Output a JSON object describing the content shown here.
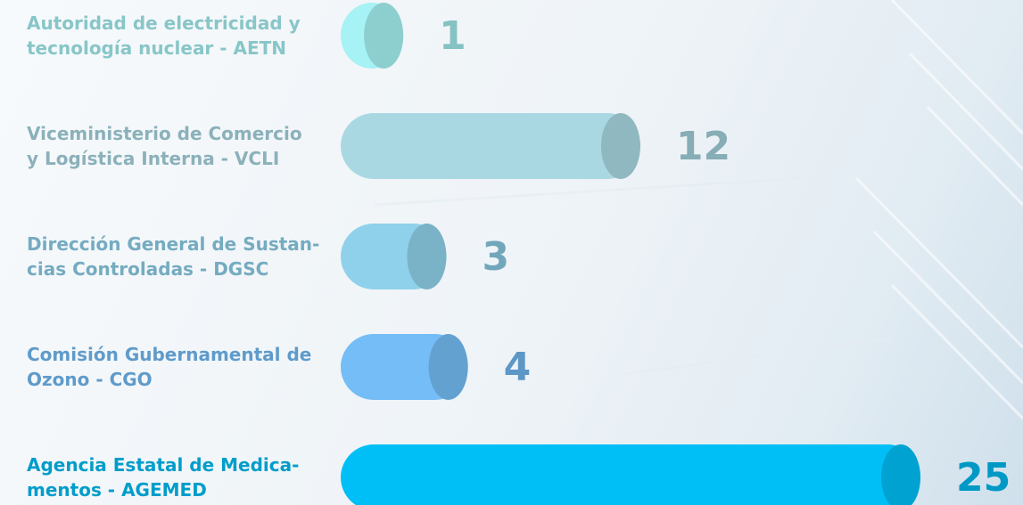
{
  "chart_data": {
    "type": "bar",
    "orientation": "horizontal",
    "categories": [
      "Autoridad de electricidad y\ntecnología nuclear - AETN",
      "Viceministerio de Comercio\ny Logística Interna - VCLI",
      "Dirección General de Sustan-\ncias Controladas - DGSC",
      "Comisión Gubernamental de\nOzono - CGO",
      "Agencia Estatal de Medica-\nmentos - AGEMED"
    ],
    "values": [
      1,
      12,
      3,
      4,
      25
    ],
    "colors": [
      "#a6f2f4",
      "#a9d8e3",
      "#8fd1ea",
      "#74bdf6",
      "#00bff6"
    ],
    "xlim": [
      0,
      25
    ]
  }
}
